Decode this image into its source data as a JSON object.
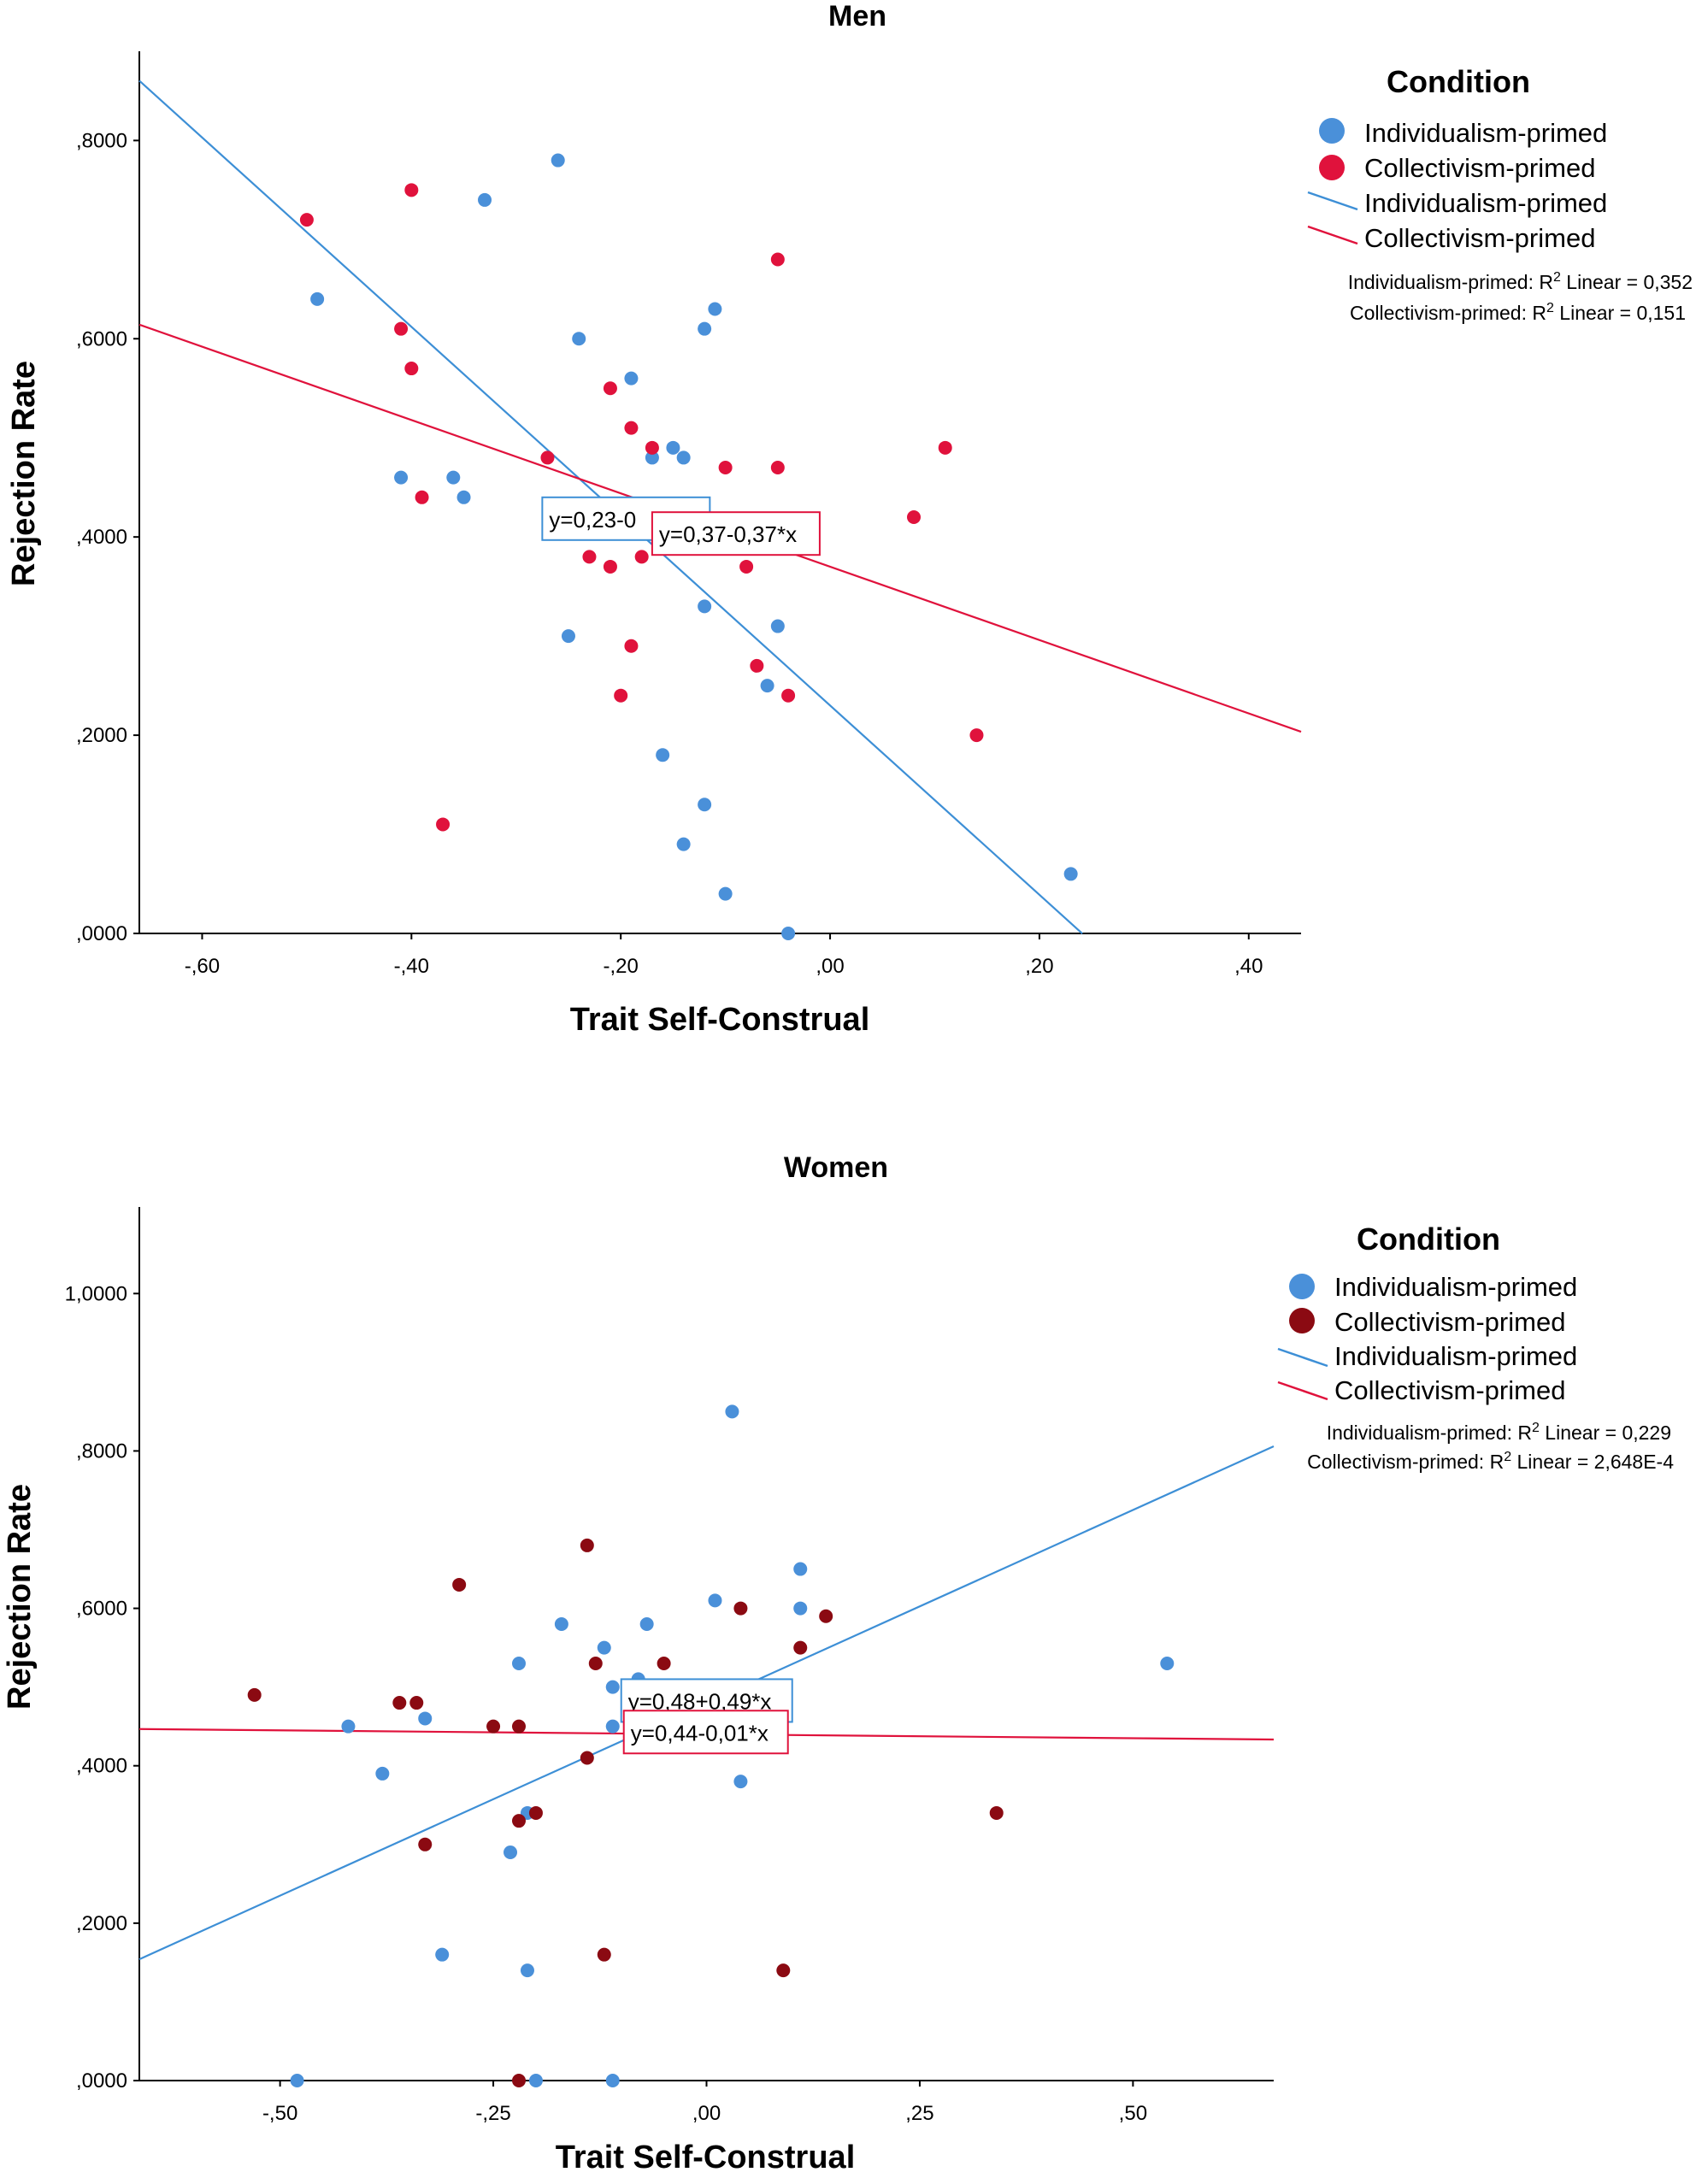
{
  "colors": {
    "individualism": "#4a90d9",
    "collectivism_men": "#e0123c",
    "collectivism_women": "#8b0a12",
    "fit_line_blue": "#3d8fd6",
    "fit_line_red": "#e0123c",
    "axis": "#000000"
  },
  "chart_data": [
    {
      "type": "scatter",
      "title": "Men",
      "xlabel": "Trait Self-Construal",
      "ylabel": "Rejection Rate",
      "xlim": [
        -0.66,
        0.45
      ],
      "ylim": [
        0,
        0.89
      ],
      "xticks": [
        -0.6,
        -0.4,
        -0.2,
        0.0,
        0.2,
        0.4
      ],
      "xtick_labels": [
        "-,60",
        "-,40",
        "-,20",
        ",00",
        ",20",
        ",40"
      ],
      "yticks": [
        0,
        0.2,
        0.4,
        0.6,
        0.8
      ],
      "ytick_labels": [
        ",0000",
        ",2000",
        ",4000",
        ",6000",
        ",8000"
      ],
      "legend": {
        "title": "Condition",
        "entries": [
          "Individualism-primed",
          "Collectivism-primed",
          "Individualism-primed",
          "Collectivism-primed"
        ]
      },
      "r2_notes": [
        {
          "prefix": "Individualism-primed: R",
          "sup": "2",
          "suffix": " Linear = 0,352"
        },
        {
          "prefix": "Collectivism-primed: R",
          "sup": "2",
          "suffix": " Linear = 0,151"
        }
      ],
      "series": [
        {
          "name": "Individualism-primed",
          "color_key": "individualism",
          "points": [
            [
              -0.26,
              0.78
            ],
            [
              -0.33,
              0.74
            ],
            [
              -0.49,
              0.64
            ],
            [
              -0.24,
              0.6
            ],
            [
              -0.12,
              0.61
            ],
            [
              -0.11,
              0.63
            ],
            [
              -0.19,
              0.56
            ],
            [
              -0.41,
              0.46
            ],
            [
              -0.36,
              0.46
            ],
            [
              -0.35,
              0.44
            ],
            [
              -0.17,
              0.48
            ],
            [
              -0.15,
              0.49
            ],
            [
              -0.14,
              0.48
            ],
            [
              -0.12,
              0.33
            ],
            [
              -0.25,
              0.3
            ],
            [
              -0.05,
              0.31
            ],
            [
              -0.06,
              0.25
            ],
            [
              -0.16,
              0.18
            ],
            [
              -0.12,
              0.13
            ],
            [
              -0.14,
              0.09
            ],
            [
              -0.1,
              0.04
            ],
            [
              -0.04,
              0.0
            ],
            [
              0.23,
              0.06
            ]
          ]
        },
        {
          "name": "Collectivism-primed",
          "color_key": "collectivism_men",
          "points": [
            [
              -0.5,
              0.72
            ],
            [
              -0.4,
              0.75
            ],
            [
              -0.41,
              0.61
            ],
            [
              -0.4,
              0.57
            ],
            [
              -0.39,
              0.44
            ],
            [
              -0.27,
              0.48
            ],
            [
              -0.21,
              0.55
            ],
            [
              -0.19,
              0.51
            ],
            [
              -0.17,
              0.49
            ],
            [
              -0.1,
              0.47
            ],
            [
              -0.05,
              0.47
            ],
            [
              -0.05,
              0.68
            ],
            [
              0.11,
              0.49
            ],
            [
              0.08,
              0.42
            ],
            [
              -0.23,
              0.38
            ],
            [
              -0.21,
              0.37
            ],
            [
              -0.18,
              0.38
            ],
            [
              -0.08,
              0.37
            ],
            [
              -0.19,
              0.29
            ],
            [
              -0.07,
              0.27
            ],
            [
              -0.2,
              0.24
            ],
            [
              -0.04,
              0.24
            ],
            [
              0.14,
              0.2
            ],
            [
              -0.37,
              0.11
            ]
          ]
        }
      ],
      "fit_lines": [
        {
          "series": "Individualism-primed",
          "color_key": "fit_line_blue",
          "x1": -0.66,
          "x2": 0.241,
          "intercept": 0.23,
          "slope": -0.955,
          "label": "y=0,23-0"
        },
        {
          "series": "Collectivism-primed",
          "color_key": "fit_line_red",
          "x1": -0.66,
          "x2": 0.45,
          "intercept": 0.37,
          "slope": -0.37,
          "label": "y=0,37-0,37*x"
        }
      ]
    },
    {
      "type": "scatter",
      "title": "Women",
      "xlabel": "Trait Self-Construal",
      "ylabel": "Rejection Rate",
      "xlim": [
        -0.665,
        0.665
      ],
      "ylim": [
        0,
        1.11
      ],
      "xticks": [
        -0.5,
        -0.25,
        0.0,
        0.25,
        0.5
      ],
      "xtick_labels": [
        "-,50",
        "-,25",
        ",00",
        ",25",
        ",50"
      ],
      "yticks": [
        0,
        0.2,
        0.4,
        0.6,
        0.8,
        1.0
      ],
      "ytick_labels": [
        ",0000",
        ",2000",
        ",4000",
        ",6000",
        ",8000",
        "1,0000"
      ],
      "legend": {
        "title": "Condition",
        "entries": [
          "Individualism-primed",
          "Collectivism-primed",
          "Individualism-primed",
          "Collectivism-primed"
        ]
      },
      "r2_notes": [
        {
          "prefix": "Individualism-primed: R",
          "sup": "2",
          "suffix": " Linear = 0,229"
        },
        {
          "prefix": "Collectivism-primed: R",
          "sup": "2",
          "suffix": " Linear = 2,648E-4"
        }
      ],
      "series": [
        {
          "name": "Individualism-primed",
          "color_key": "individualism",
          "points": [
            [
              0.03,
              0.85
            ],
            [
              0.11,
              0.65
            ],
            [
              0.01,
              0.61
            ],
            [
              0.11,
              0.6
            ],
            [
              -0.17,
              0.58
            ],
            [
              -0.07,
              0.58
            ],
            [
              -0.12,
              0.55
            ],
            [
              -0.22,
              0.53
            ],
            [
              -0.08,
              0.51
            ],
            [
              -0.11,
              0.5
            ],
            [
              -0.42,
              0.45
            ],
            [
              -0.33,
              0.46
            ],
            [
              -0.11,
              0.45
            ],
            [
              -0.38,
              0.39
            ],
            [
              -0.21,
              0.34
            ],
            [
              -0.23,
              0.29
            ],
            [
              0.04,
              0.38
            ],
            [
              -0.31,
              0.16
            ],
            [
              -0.21,
              0.14
            ],
            [
              -0.48,
              0.0
            ],
            [
              -0.2,
              0.0
            ],
            [
              -0.11,
              0.0
            ],
            [
              0.54,
              0.53
            ]
          ]
        },
        {
          "name": "Collectivism-primed",
          "color_key": "collectivism_women",
          "points": [
            [
              -0.53,
              0.49
            ],
            [
              -0.36,
              0.48
            ],
            [
              -0.34,
              0.48
            ],
            [
              -0.29,
              0.63
            ],
            [
              -0.25,
              0.45
            ],
            [
              -0.22,
              0.45
            ],
            [
              -0.14,
              0.68
            ],
            [
              -0.13,
              0.53
            ],
            [
              -0.05,
              0.53
            ],
            [
              0.04,
              0.6
            ],
            [
              0.11,
              0.55
            ],
            [
              0.14,
              0.59
            ],
            [
              -0.14,
              0.41
            ],
            [
              -0.22,
              0.33
            ],
            [
              -0.2,
              0.34
            ],
            [
              -0.33,
              0.3
            ],
            [
              0.34,
              0.34
            ],
            [
              -0.12,
              0.16
            ],
            [
              0.09,
              0.14
            ],
            [
              -0.22,
              0.0
            ]
          ]
        }
      ],
      "fit_lines": [
        {
          "series": "Individualism-primed",
          "color_key": "fit_line_blue",
          "x1": -0.665,
          "x2": 0.665,
          "intercept": 0.48,
          "slope": 0.49,
          "label": "y=0,48+0,49*x"
        },
        {
          "series": "Collectivism-primed",
          "color_key": "fit_line_red",
          "x1": -0.665,
          "x2": 0.665,
          "intercept": 0.44,
          "slope": -0.01,
          "label": "y=0,44-0,01*x"
        }
      ]
    }
  ]
}
